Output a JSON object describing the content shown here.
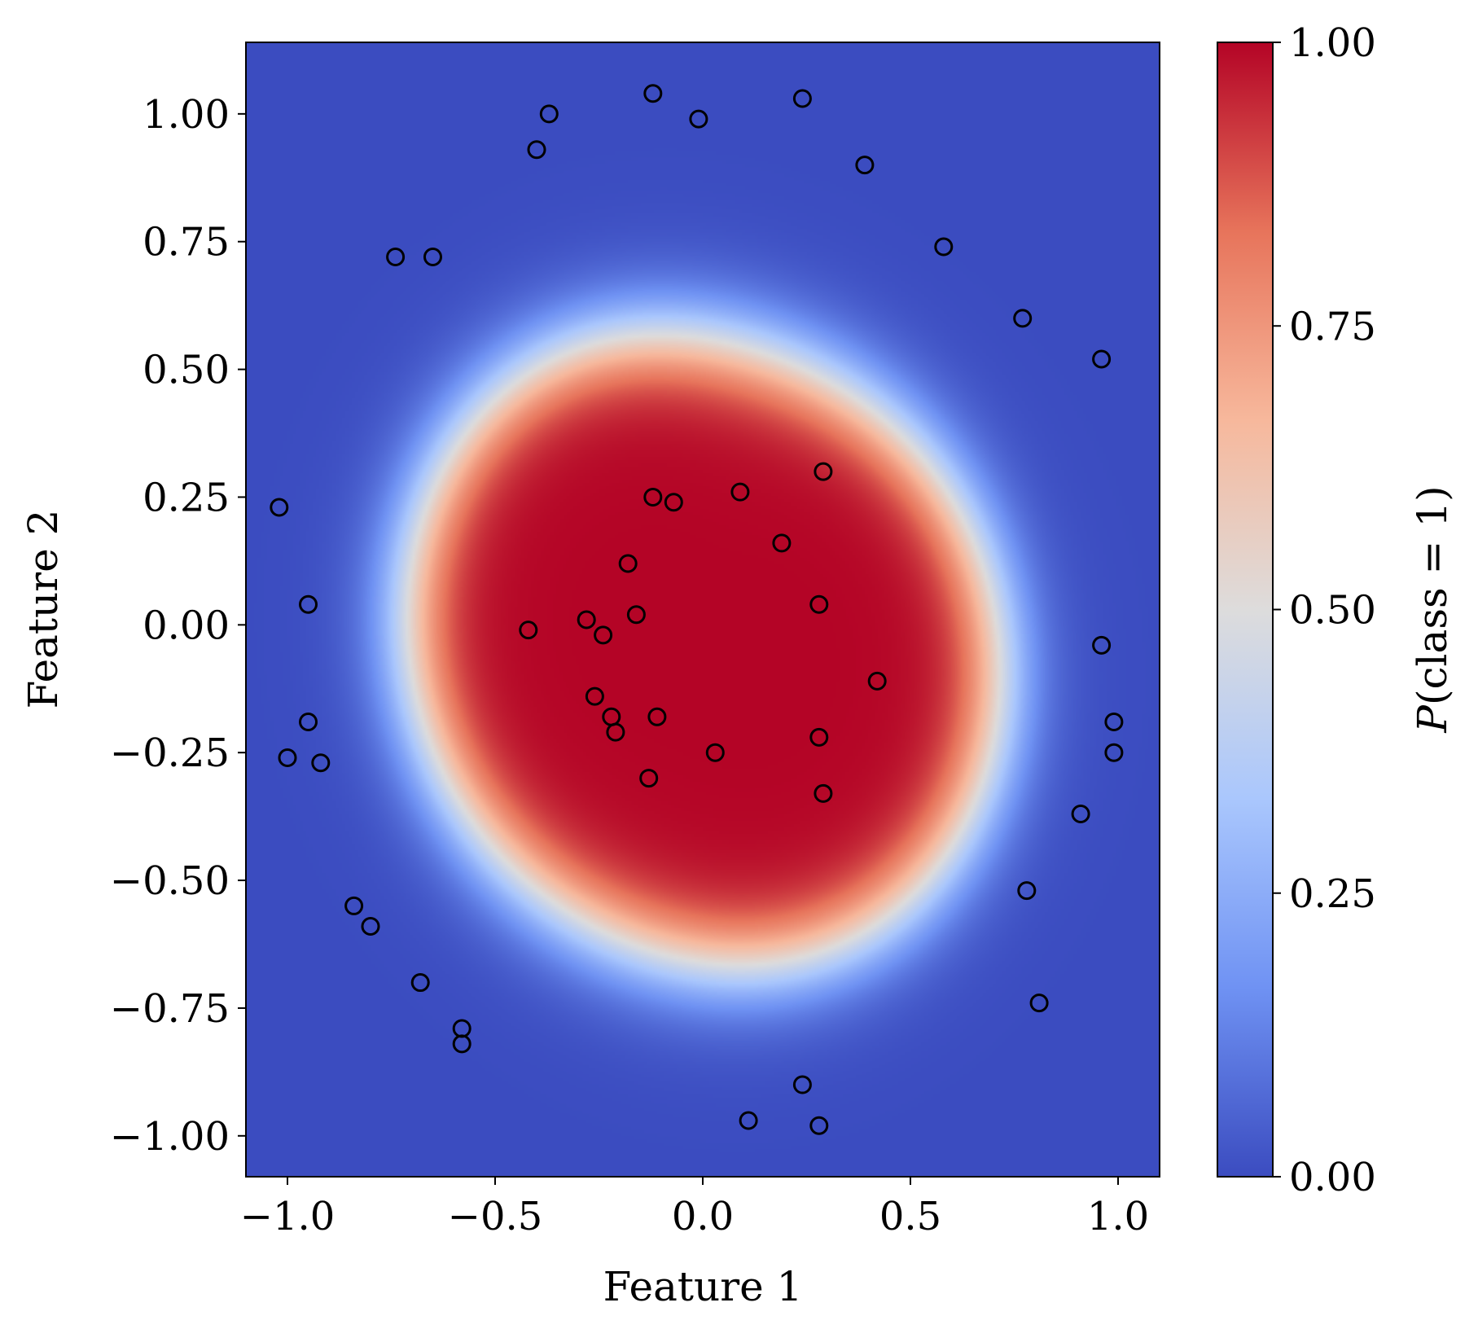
{
  "chart_data": {
    "type": "heatmap",
    "xlabel": "Feature 1",
    "ylabel": "Feature 2",
    "xlim": [
      -1.1,
      1.1
    ],
    "ylim": [
      -1.08,
      1.14
    ],
    "x_ticks": [
      -1.0,
      -0.5,
      0.0,
      0.5,
      1.0
    ],
    "x_tick_labels": [
      "−1.0",
      "−0.5",
      "0.0",
      "0.5",
      "1.0"
    ],
    "y_ticks": [
      1.0,
      0.75,
      0.5,
      0.25,
      0.0,
      -0.25,
      -0.5,
      -0.75,
      -1.0
    ],
    "y_tick_labels": [
      "1.00",
      "0.75",
      "0.50",
      "0.25",
      "0.00",
      "−0.25",
      "−0.50",
      "−0.75",
      "−1.00"
    ],
    "colorbar": {
      "label": "P(class = 1)",
      "label_var": "P",
      "label_rest": "(class = 1)",
      "ticks": [
        0.0,
        0.25,
        0.5,
        0.75,
        1.0
      ],
      "tick_labels": [
        "0.00",
        "0.25",
        "0.50",
        "0.75",
        "1.00"
      ],
      "colormap": "coolwarm",
      "range": [
        0,
        1
      ]
    },
    "colormap_stops": [
      "#3b4cc0",
      "#6f92f3",
      "#aac7fd",
      "#dddcdc",
      "#f7b89c",
      "#e7745b",
      "#b40426"
    ],
    "grid": false,
    "legend": "none",
    "points": [
      {
        "x": -0.12,
        "y": 1.04
      },
      {
        "x": 0.24,
        "y": 1.03
      },
      {
        "x": -0.37,
        "y": 1.0
      },
      {
        "x": -0.01,
        "y": 0.99
      },
      {
        "x": -0.4,
        "y": 0.93
      },
      {
        "x": 0.39,
        "y": 0.9
      },
      {
        "x": 0.58,
        "y": 0.74
      },
      {
        "x": -0.74,
        "y": 0.72
      },
      {
        "x": -0.65,
        "y": 0.72
      },
      {
        "x": 0.77,
        "y": 0.6
      },
      {
        "x": 0.96,
        "y": 0.52
      },
      {
        "x": 0.29,
        "y": 0.3
      },
      {
        "x": 0.09,
        "y": 0.26
      },
      {
        "x": -0.12,
        "y": 0.25
      },
      {
        "x": -0.07,
        "y": 0.24
      },
      {
        "x": -1.02,
        "y": 0.23
      },
      {
        "x": 0.19,
        "y": 0.16
      },
      {
        "x": -0.18,
        "y": 0.12
      },
      {
        "x": -0.95,
        "y": 0.04
      },
      {
        "x": 0.28,
        "y": 0.04
      },
      {
        "x": -0.16,
        "y": 0.02
      },
      {
        "x": -0.28,
        "y": 0.01
      },
      {
        "x": -0.42,
        "y": -0.01
      },
      {
        "x": -0.24,
        "y": -0.02
      },
      {
        "x": 0.96,
        "y": -0.04
      },
      {
        "x": 0.42,
        "y": -0.11
      },
      {
        "x": -0.26,
        "y": -0.14
      },
      {
        "x": -0.22,
        "y": -0.18
      },
      {
        "x": -0.11,
        "y": -0.18
      },
      {
        "x": 0.99,
        "y": -0.19
      },
      {
        "x": -0.95,
        "y": -0.19
      },
      {
        "x": -0.21,
        "y": -0.21
      },
      {
        "x": 0.28,
        "y": -0.22
      },
      {
        "x": 0.03,
        "y": -0.25
      },
      {
        "x": 0.99,
        "y": -0.25
      },
      {
        "x": -1.0,
        "y": -0.26
      },
      {
        "x": -0.92,
        "y": -0.27
      },
      {
        "x": -0.13,
        "y": -0.3
      },
      {
        "x": 0.29,
        "y": -0.33
      },
      {
        "x": 0.91,
        "y": -0.37
      },
      {
        "x": 0.78,
        "y": -0.52
      },
      {
        "x": -0.84,
        "y": -0.55
      },
      {
        "x": -0.8,
        "y": -0.59
      },
      {
        "x": -0.68,
        "y": -0.7
      },
      {
        "x": 0.81,
        "y": -0.74
      },
      {
        "x": -0.58,
        "y": -0.79
      },
      {
        "x": -0.58,
        "y": -0.82
      },
      {
        "x": 0.24,
        "y": -0.9
      },
      {
        "x": 0.11,
        "y": -0.97
      },
      {
        "x": 0.28,
        "y": -0.98
      }
    ]
  }
}
